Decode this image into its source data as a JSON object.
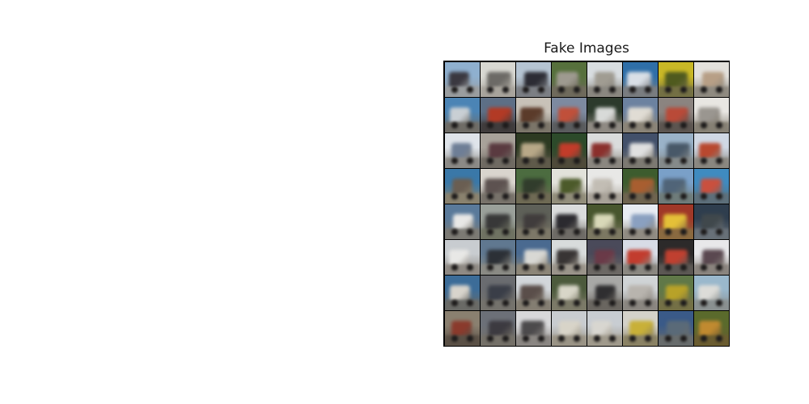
{
  "figure": {
    "title": "Fake Images",
    "grid_rows": 8,
    "grid_cols": 8
  },
  "palette": [
    [
      "#8fb0cf",
      "#3a3840",
      "#9a9d9f"
    ],
    [
      "#d8d8d2",
      "#6c6a66",
      "#a8a49c"
    ],
    [
      "#b5c4d2",
      "#2c2c34",
      "#7c7f84"
    ],
    [
      "#56703c",
      "#9e9a90",
      "#6f6a5c"
    ],
    [
      "#d8dde0",
      "#a09c92",
      "#8a8780"
    ],
    [
      "#2f6fa8",
      "#d9dfe6",
      "#7a7d80"
    ],
    [
      "#c9b826",
      "#4f5a1e",
      "#736f44"
    ],
    [
      "#e3e1dc",
      "#b79f86",
      "#8f8a80"
    ],
    [
      "#4b84b5",
      "#c9cfd4",
      "#6f6c66"
    ],
    [
      "#5d6f86",
      "#b23a25",
      "#403c3c"
    ],
    [
      "#c8c2b8",
      "#5b3b2a",
      "#7b7569"
    ],
    [
      "#7d8aa0",
      "#c0503a",
      "#5a5c5e"
    ],
    [
      "#2c3a2c",
      "#d8dad8",
      "#8f8a83"
    ],
    [
      "#6c82a0",
      "#e0dcd4",
      "#8b8477"
    ],
    [
      "#8b8480",
      "#b94a38",
      "#5c5550"
    ],
    [
      "#e8e6e2",
      "#9a9690",
      "#868074"
    ],
    [
      "#dfe4ea",
      "#6e7e96",
      "#8c8a86"
    ],
    [
      "#a8a29a",
      "#5a3a40",
      "#6f6a62"
    ],
    [
      "#2d3a22",
      "#b8a888",
      "#5f5a4a"
    ],
    [
      "#2c4a2a",
      "#c23c2a",
      "#4f4a3a"
    ],
    [
      "#dadcdc",
      "#8b2f2c",
      "#8b8780"
    ],
    [
      "#42506a",
      "#e0e0e0",
      "#7d7a72"
    ],
    [
      "#9ab2c8",
      "#485868",
      "#858a8a"
    ],
    [
      "#d0d8e4",
      "#b8482f",
      "#8a8780"
    ],
    [
      "#3a78a8",
      "#6a5e52",
      "#8a826e"
    ],
    [
      "#d9d5ce",
      "#5d5250",
      "#77726a"
    ],
    [
      "#4c6c40",
      "#313c2c",
      "#6f6a54"
    ],
    [
      "#e2e2da",
      "#4c5a2a",
      "#918d7a"
    ],
    [
      "#e8e8e6",
      "#c2bdb4",
      "#a8a298"
    ],
    [
      "#3d5c2e",
      "#a85e30",
      "#6f6450"
    ],
    [
      "#7aa0c8",
      "#506478",
      "#6f7c7a"
    ],
    [
      "#3f8bc0",
      "#c9503e",
      "#5d6f7a"
    ],
    [
      "#5a7a9a",
      "#e8e8e6",
      "#7c7a74"
    ],
    [
      "#9aa09a",
      "#383838",
      "#6f7262"
    ],
    [
      "#5e6058",
      "#403c3c",
      "#7d7868"
    ],
    [
      "#dadcdc",
      "#2b2a2f",
      "#6e6b66"
    ],
    [
      "#48562e",
      "#d8d8b8",
      "#7c7862"
    ],
    [
      "#e8ecf2",
      "#8aa0c0",
      "#908b82"
    ],
    [
      "#a03828",
      "#e4c038",
      "#8a6a40"
    ],
    [
      "#2f3e4e",
      "#40484c",
      "#687078"
    ],
    [
      "#c8ccd0",
      "#e8e8e6",
      "#8f8a84"
    ],
    [
      "#607890",
      "#2c3036",
      "#8a8a84"
    ],
    [
      "#4a6a90",
      "#d8d8d4",
      "#8d8678"
    ],
    [
      "#d8dcdc",
      "#383434",
      "#9a948a"
    ],
    [
      "#4a4a5a",
      "#6a3a48",
      "#6c6864"
    ],
    [
      "#d8dce6",
      "#c23c2e",
      "#8a8780"
    ],
    [
      "#2c2a2a",
      "#c04030",
      "#5c5854"
    ],
    [
      "#e8e8ea",
      "#5a4850",
      "#8a847e"
    ],
    [
      "#3c6c98",
      "#d8d4cc",
      "#6a6a66"
    ],
    [
      "#6a6c70",
      "#3a3e48",
      "#74726c"
    ],
    [
      "#d2d6da",
      "#5a4e4a",
      "#847e72"
    ],
    [
      "#4c5a3c",
      "#d8d6c8",
      "#7c7a68"
    ],
    [
      "#a8a8a6",
      "#2f2e30",
      "#6a6660"
    ],
    [
      "#d0d4d6",
      "#b8b4ae",
      "#8a8680"
    ],
    [
      "#607848",
      "#b8a228",
      "#747046"
    ],
    [
      "#9ab8cc",
      "#dcdcd8",
      "#8a9090"
    ],
    [
      "#8a8070",
      "#8a3a2c",
      "#5a5046"
    ],
    [
      "#6c7078",
      "#3c3a40",
      "#747068"
    ],
    [
      "#d8d8da",
      "#4c4a4c",
      "#8a8682"
    ],
    [
      "#c8ccd0",
      "#d8d4c8",
      "#9a9486"
    ],
    [
      "#c8cdd2",
      "#d8d6d0",
      "#a09a8c"
    ],
    [
      "#d4d2ca",
      "#c8b038",
      "#8a8264"
    ],
    [
      "#3a5a88",
      "#5a6a78",
      "#686c6c"
    ],
    [
      "#5a6a2c",
      "#c08a30",
      "#6a5c30"
    ]
  ]
}
